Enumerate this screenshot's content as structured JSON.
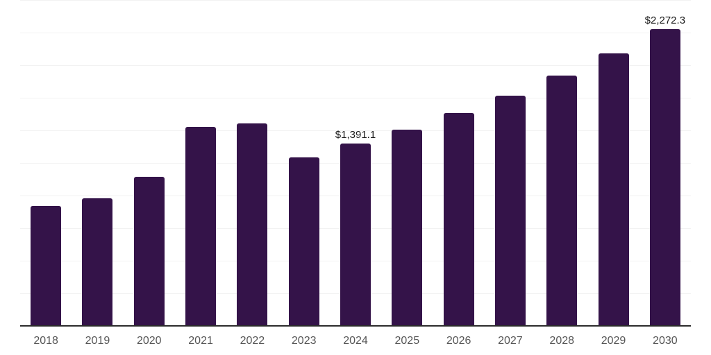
{
  "chart_data": {
    "type": "bar",
    "title": "",
    "xlabel": "",
    "ylabel": "",
    "categories": [
      "2018",
      "2019",
      "2020",
      "2021",
      "2022",
      "2023",
      "2024",
      "2025",
      "2026",
      "2027",
      "2028",
      "2029",
      "2030"
    ],
    "values": [
      916,
      975,
      1138,
      1521,
      1550,
      1289,
      1391.1,
      1502,
      1626,
      1762,
      1915,
      2084,
      2272.3
    ],
    "data_labels": [
      {
        "category": "2024",
        "text": "$1,391.1"
      },
      {
        "category": "2030",
        "text": "$2,272.3"
      }
    ],
    "ylim": [
      0,
      2500
    ],
    "gridline_step": 250,
    "grid": true,
    "legend": false,
    "y_tick_labels_visible": false,
    "bar_color": "#341349",
    "gridline_color": "#f2f2f2",
    "axis_line_color": "#2b2b2b",
    "tick_label_color": "#565656",
    "data_label_color": "#1a1a1a",
    "background_color": "#ffffff"
  }
}
